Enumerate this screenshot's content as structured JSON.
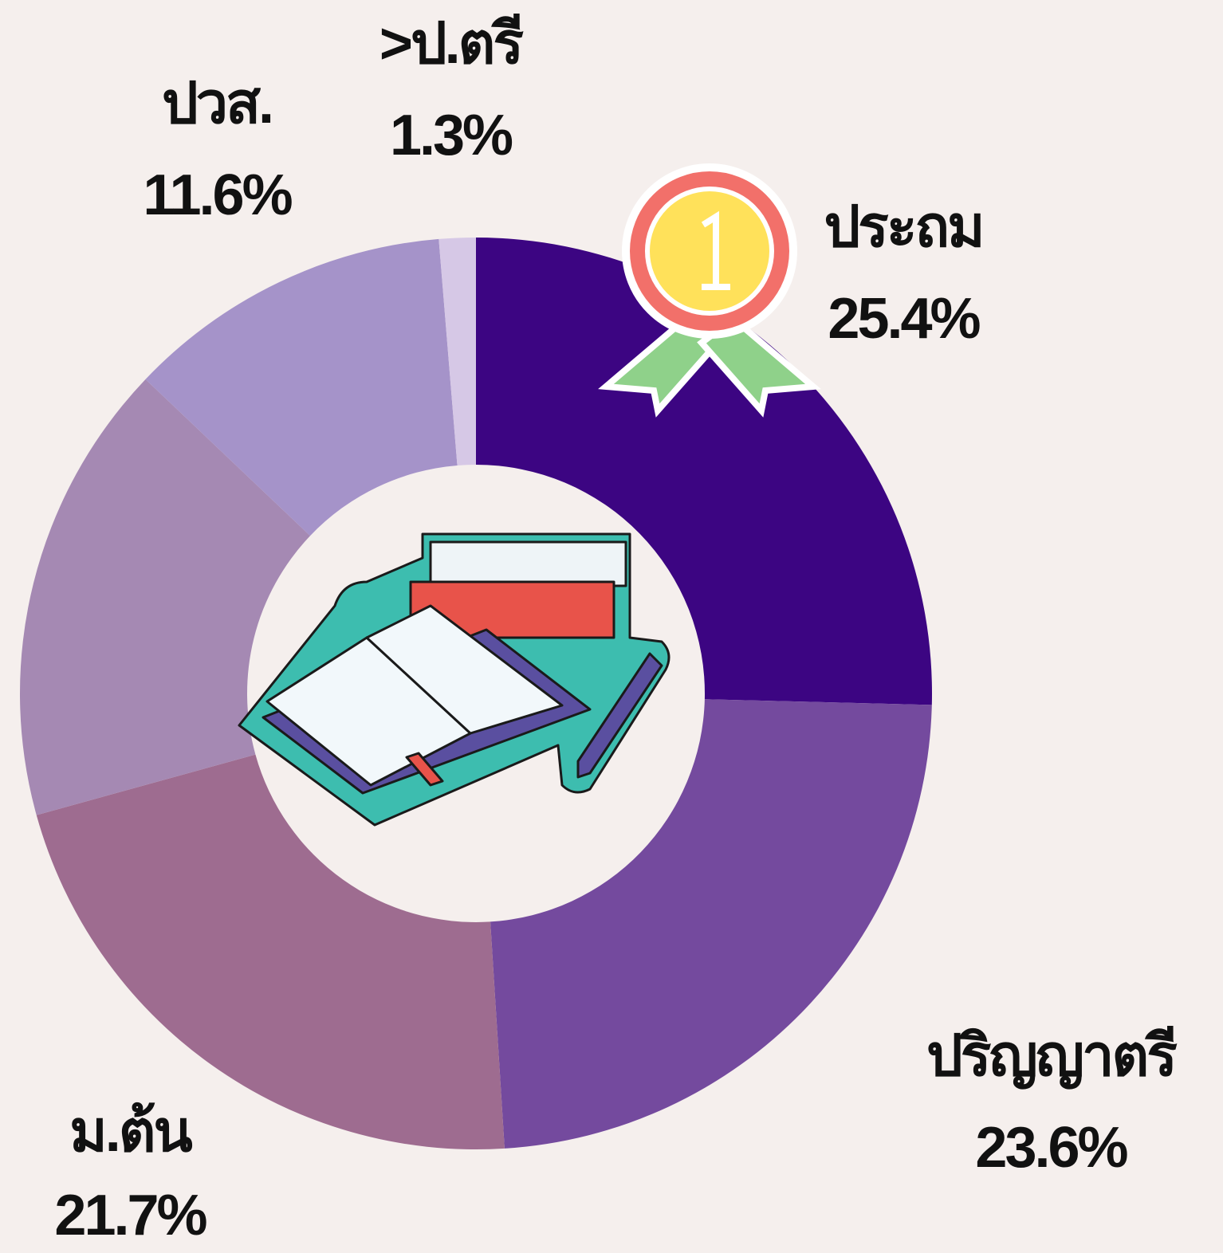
{
  "chart_data": {
    "type": "donut",
    "categories": [
      "ประถม",
      "ปริญญาตรี",
      "ม.ต้น",
      null,
      "ปวส.",
      ">ป.ตรี"
    ],
    "values": [
      25.4,
      23.6,
      21.7,
      16.4,
      11.6,
      1.3
    ],
    "value_labels": [
      "25.4%",
      "23.6%",
      "21.7%",
      null,
      "11.6%",
      "1.3%"
    ],
    "colors": [
      "#3c0582",
      "#744a9e",
      "#9e6c90",
      "#a589b3",
      "#a593c9",
      "#d6c8e6"
    ]
  }
}
